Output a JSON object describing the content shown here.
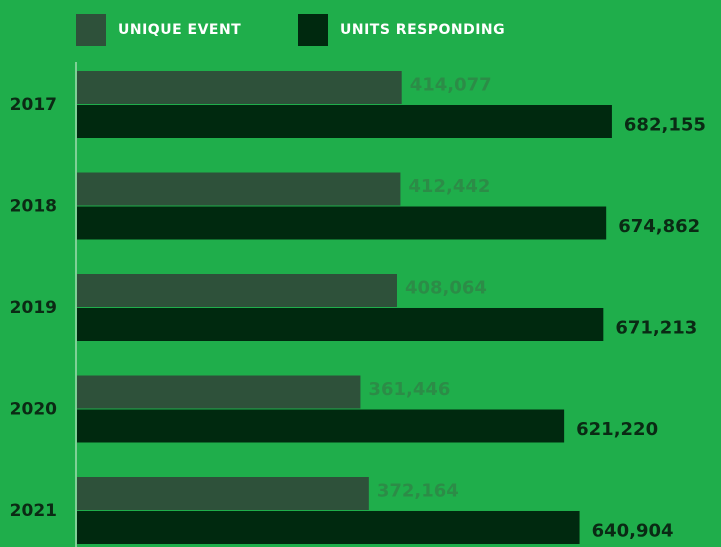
{
  "chart_data": {
    "type": "hbar",
    "categories": [
      "2017",
      "2018",
      "2019",
      "2020",
      "2021"
    ],
    "series": [
      {
        "name": "UNIQUE EVENT",
        "color": "#2e513a",
        "label_color": "#2c8c47",
        "values": [
          414077,
          412442,
          408064,
          361446,
          372164
        ],
        "value_labels": [
          "414,077",
          "412,442",
          "408,064",
          "361,446",
          "372,164"
        ]
      },
      {
        "name": "UNITS RESPONDING",
        "color": "#00290f",
        "label_color": "#0a2a14",
        "values": [
          682155,
          674862,
          671213,
          621220,
          640904
        ],
        "value_labels": [
          "682,155",
          "674,862",
          "671,213",
          "621,220",
          "640,904"
        ]
      }
    ],
    "xlim": [
      0,
      820000
    ],
    "legend": "top"
  }
}
